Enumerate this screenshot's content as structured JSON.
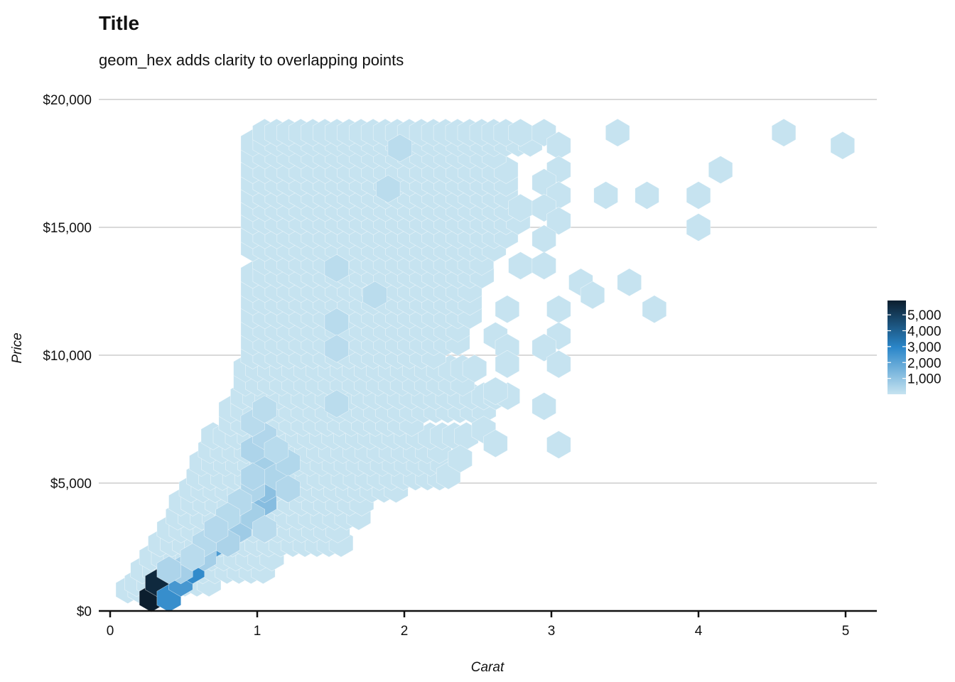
{
  "chart_data": {
    "type": "hexbin",
    "title": "Title",
    "subtitle": "geom_hex adds clarity to overlapping points",
    "xlabel": "Carat",
    "ylabel": "Price",
    "xlim": [
      0,
      5.2
    ],
    "ylim": [
      0,
      20000
    ],
    "x_ticks": [
      0,
      1,
      2,
      3,
      4,
      5
    ],
    "x_tick_labels": [
      "0",
      "1",
      "2",
      "3",
      "4",
      "5"
    ],
    "y_ticks": [
      0,
      5000,
      10000,
      15000,
      20000
    ],
    "y_tick_labels": [
      "$0",
      "$5,000",
      "$10,000",
      "$15,000",
      "$20,000"
    ],
    "grid": "horizontal major",
    "legend": {
      "position": "right",
      "title": "",
      "breaks": [
        1000,
        2000,
        3000,
        4000,
        5000
      ],
      "labels": [
        "1,000",
        "2,000",
        "3,000",
        "4,000",
        "5,000"
      ],
      "range": [
        1,
        5900
      ],
      "colors": {
        "low": "#c6e3f0",
        "mid": "#2a86c9",
        "high": "#0c1e2e"
      }
    },
    "bins": [
      {
        "carat": 0.28,
        "price": 500,
        "count": 5900
      },
      {
        "carat": 0.32,
        "price": 1100,
        "count": 5600
      },
      {
        "carat": 0.4,
        "price": 500,
        "count": 2700
      },
      {
        "carat": 0.48,
        "price": 1100,
        "count": 2400
      },
      {
        "carat": 0.56,
        "price": 1600,
        "count": 2800
      },
      {
        "carat": 0.72,
        "price": 2650,
        "count": 2300
      },
      {
        "carat": 1.05,
        "price": 4250,
        "count": 1200
      },
      {
        "carat": 1.05,
        "price": 4770,
        "count": 1100
      },
      {
        "carat": 0.88,
        "price": 3200,
        "count": 760
      },
      {
        "carat": 0.97,
        "price": 3700,
        "count": 650
      },
      {
        "carat": 1.05,
        "price": 5800,
        "count": 650
      },
      {
        "carat": 0.48,
        "price": 1600,
        "count": 620
      },
      {
        "carat": 0.64,
        "price": 2100,
        "count": 630
      },
      {
        "carat": 0.4,
        "price": 1600,
        "count": 470
      },
      {
        "carat": 1.13,
        "price": 5250,
        "count": 460
      },
      {
        "carat": 0.97,
        "price": 4770,
        "count": 430
      },
      {
        "carat": 0.8,
        "price": 2650,
        "count": 500
      },
      {
        "carat": 0.97,
        "price": 6300,
        "count": 470
      },
      {
        "carat": 1.05,
        "price": 6840,
        "count": 400
      },
      {
        "carat": 1.21,
        "price": 5800,
        "count": 390
      },
      {
        "carat": 1.21,
        "price": 4770,
        "count": 380
      },
      {
        "carat": 0.97,
        "price": 5250,
        "count": 410
      },
      {
        "carat": 0.88,
        "price": 4250,
        "count": 320
      },
      {
        "carat": 0.8,
        "price": 3700,
        "count": 300
      },
      {
        "carat": 0.64,
        "price": 2650,
        "count": 330
      },
      {
        "carat": 0.72,
        "price": 3200,
        "count": 340
      },
      {
        "carat": 1.05,
        "price": 3200,
        "count": 250
      },
      {
        "carat": 1.13,
        "price": 6300,
        "count": 260
      },
      {
        "carat": 0.97,
        "price": 7360,
        "count": 250
      },
      {
        "carat": 1.05,
        "price": 7880,
        "count": 230
      },
      {
        "carat": 1.54,
        "price": 11300,
        "count": 260
      },
      {
        "carat": 1.54,
        "price": 10260,
        "count": 240
      },
      {
        "carat": 1.54,
        "price": 8100,
        "count": 230
      },
      {
        "carat": 1.54,
        "price": 13400,
        "count": 220
      },
      {
        "carat": 0.56,
        "price": 2100,
        "count": 250
      },
      {
        "carat": 1.89,
        "price": 16500,
        "count": 230
      },
      {
        "carat": 1.97,
        "price": 18100,
        "count": 230
      },
      {
        "carat": 1.8,
        "price": 12350,
        "count": 230
      }
    ]
  }
}
